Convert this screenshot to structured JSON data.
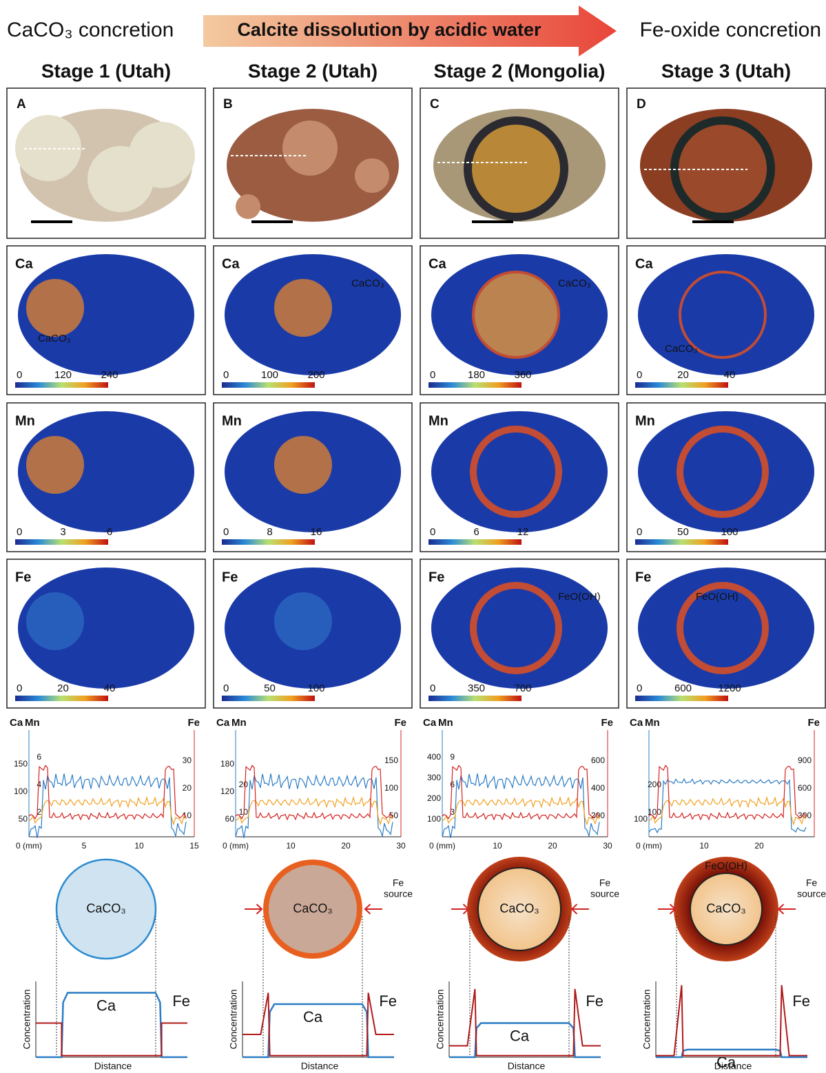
{
  "header": {
    "left_label": "CaCO₃ concretion",
    "arrow_label": "Calcite dissolution by acidic water",
    "right_label": "Fe-oxide concretion"
  },
  "columns": [
    {
      "title": "Stage 1 (Utah)",
      "photo": {
        "label": "A"
      },
      "maps": [
        {
          "element": "Ca",
          "scale": [
            0,
            120,
            240
          ],
          "annotations": [
            "CaCO₃"
          ]
        },
        {
          "element": "Mn",
          "scale": [
            0,
            3,
            6
          ]
        },
        {
          "element": "Fe",
          "scale": [
            0,
            20,
            40
          ]
        }
      ],
      "profile": {
        "left_axes": [
          {
            "name": "Ca",
            "ticks": [
              50,
              100,
              150
            ]
          },
          {
            "name": "Mn",
            "ticks": [
              2,
              4,
              6
            ]
          }
        ],
        "right_axis": {
          "name": "Fe",
          "ticks": [
            10,
            20,
            30
          ]
        },
        "xticks": [
          "0 (mm)",
          5,
          10,
          15
        ]
      },
      "schematic": {
        "core_label": "CaCO₃",
        "curve_labels": [
          "Ca",
          "Fe"
        ],
        "x_label": "Distance",
        "y_label": "Concentration"
      }
    },
    {
      "title": "Stage 2 (Utah)",
      "photo": {
        "label": "B"
      },
      "maps": [
        {
          "element": "Ca",
          "scale": [
            0,
            100,
            200
          ],
          "annotations": [
            "CaCO₃"
          ]
        },
        {
          "element": "Mn",
          "scale": [
            0,
            8,
            16
          ]
        },
        {
          "element": "Fe",
          "scale": [
            0,
            50,
            100
          ]
        }
      ],
      "profile": {
        "left_axes": [
          {
            "name": "Ca",
            "ticks": [
              60,
              120,
              180
            ]
          },
          {
            "name": "Mn",
            "ticks": [
              10,
              20
            ]
          }
        ],
        "right_axis": {
          "name": "Fe",
          "ticks": [
            50,
            100,
            150
          ]
        },
        "xticks": [
          "0 (mm)",
          10,
          20,
          30
        ]
      },
      "schematic": {
        "core_label": "CaCO₃",
        "source_label": [
          "Fe",
          "source"
        ],
        "curve_labels": [
          "Ca",
          "Fe"
        ],
        "x_label": "Distance",
        "y_label": "Concentration"
      }
    },
    {
      "title": "Stage 2 (Mongolia)",
      "photo": {
        "label": "C"
      },
      "maps": [
        {
          "element": "Ca",
          "scale": [
            0,
            180,
            360
          ],
          "annotations": [
            "CaCO₃"
          ]
        },
        {
          "element": "Mn",
          "scale": [
            0,
            6,
            12
          ]
        },
        {
          "element": "Fe",
          "scale": [
            0,
            350,
            700
          ],
          "annotations": [
            "FeO(OH)"
          ]
        }
      ],
      "profile": {
        "left_axes": [
          {
            "name": "Ca",
            "ticks": [
              100,
              200,
              300,
              400
            ]
          },
          {
            "name": "Mn",
            "ticks": [
              3,
              6,
              9
            ]
          }
        ],
        "right_axis": {
          "name": "Fe",
          "ticks": [
            200,
            400,
            600
          ]
        },
        "xticks": [
          "0 (mm)",
          10,
          20,
          30
        ]
      },
      "schematic": {
        "core_label": "CaCO₃",
        "source_label": [
          "Fe",
          "source"
        ],
        "curve_labels": [
          "Ca",
          "Fe"
        ],
        "x_label": "Distance",
        "y_label": "Concentration"
      }
    },
    {
      "title": "Stage 3 (Utah)",
      "photo": {
        "label": "D"
      },
      "maps": [
        {
          "element": "Ca",
          "scale": [
            0,
            20,
            40
          ],
          "annotations": [
            "CaCO₃"
          ]
        },
        {
          "element": "Mn",
          "scale": [
            0,
            50,
            100
          ]
        },
        {
          "element": "Fe",
          "scale": [
            0,
            600,
            1200
          ],
          "annotations": [
            "FeO(OH)"
          ]
        }
      ],
      "profile": {
        "left_axes": [
          {
            "name": "Ca",
            "ticks": [
              100
            ]
          },
          {
            "name": "Mn",
            "ticks": [
              100,
              200
            ]
          }
        ],
        "right_axis": {
          "name": "Fe",
          "ticks": [
            300,
            600,
            900
          ]
        },
        "xticks": [
          "0 (mm)",
          10,
          20
        ]
      },
      "schematic": {
        "core_label": "CaCO₃",
        "ring_label": "FeO(OH)",
        "source_label": [
          "Fe",
          "source"
        ],
        "curve_labels": [
          "Ca",
          "Fe"
        ],
        "x_label": "Distance",
        "y_label": "Concentration"
      }
    }
  ]
}
